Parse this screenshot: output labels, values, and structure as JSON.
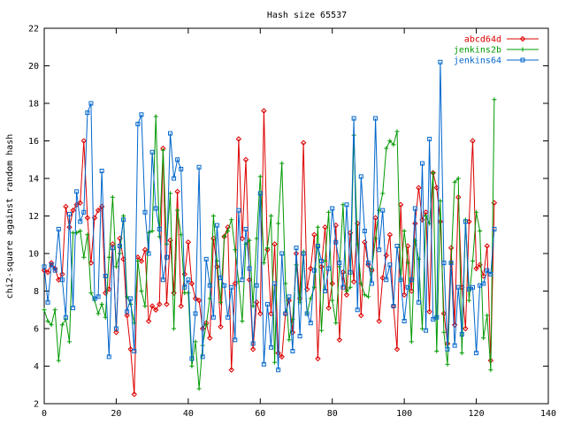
{
  "chart_data": {
    "type": "line",
    "title": "Hash size 65537",
    "xlabel": "",
    "ylabel": "chi2-square against random hash",
    "xlim": [
      0,
      140
    ],
    "ylim": [
      2,
      22
    ],
    "xticks": [
      0,
      20,
      40,
      60,
      80,
      100,
      120,
      140
    ],
    "yticks": [
      2,
      4,
      6,
      8,
      10,
      12,
      14,
      16,
      18,
      20,
      22
    ],
    "grid": false,
    "legend_position": "top-right",
    "series": [
      {
        "name": "abcd64d",
        "color": "#dd0000",
        "marker": "diamond",
        "x": [
          0,
          1,
          2,
          3,
          4,
          5,
          6,
          7,
          8,
          9,
          10,
          11,
          12,
          13,
          14,
          15,
          16,
          17,
          18,
          19,
          20,
          21,
          22,
          23,
          24,
          25,
          26,
          27,
          28,
          29,
          30,
          31,
          32,
          33,
          34,
          35,
          36,
          37,
          38,
          39,
          40,
          41,
          42,
          43,
          44,
          45,
          46,
          47,
          48,
          49,
          50,
          51,
          52,
          53,
          54,
          55,
          56,
          57,
          58,
          59,
          60,
          61,
          62,
          63,
          64,
          65,
          66,
          67,
          68,
          69,
          70,
          71,
          72,
          73,
          74,
          75,
          76,
          77,
          78,
          79,
          80,
          81,
          82,
          83,
          84,
          85,
          86,
          87,
          88,
          89,
          90,
          91,
          92,
          93,
          94,
          95,
          96,
          97,
          98,
          99,
          100,
          101,
          102,
          103,
          104,
          105,
          106,
          107,
          108,
          109,
          110,
          111,
          112,
          113,
          114,
          115,
          116,
          117,
          118,
          119,
          120,
          121,
          122,
          123,
          124,
          125
        ],
        "y": [
          9.1,
          9.0,
          9.5,
          9.2,
          8.6,
          8.9,
          12.5,
          11.4,
          12.3,
          12.6,
          12.7,
          16.0,
          11.9,
          9.5,
          11.9,
          12.3,
          12.5,
          7.9,
          8.1,
          10.5,
          5.8,
          10.8,
          9.7,
          6.7,
          4.9,
          2.5,
          9.8,
          9.6,
          10.2,
          6.4,
          7.2,
          7.0,
          7.3,
          15.6,
          7.3,
          10.7,
          7.9,
          13.3,
          7.2,
          8.9,
          10.6,
          8.4,
          7.6,
          7.5,
          6.0,
          6.3,
          5.5,
          10.8,
          9.3,
          6.1,
          10.9,
          11.4,
          3.8,
          8.4,
          16.1,
          10.8,
          15.0,
          8.6,
          4.9,
          7.4,
          6.8,
          17.6,
          10.2,
          6.8,
          10.5,
          4.7,
          4.5,
          6.8,
          7.5,
          5.8,
          10.0,
          7.6,
          15.9,
          8.1,
          9.2,
          11.0,
          4.4,
          9.3,
          11.4,
          7.1,
          8.4,
          11.5,
          5.4,
          9.0,
          7.8,
          11.1,
          8.5,
          11.6,
          6.7,
          10.6,
          9.4,
          9.1,
          11.9,
          6.4,
          8.7,
          9.9,
          11.0,
          7.2,
          4.9,
          12.6,
          7.8,
          10.4,
          8.0,
          11.6,
          13.5,
          11.8,
          12.2,
          6.9,
          14.3,
          13.5,
          11.7,
          6.8,
          5.2,
          10.3,
          6.2,
          13.0,
          8.2,
          6.0,
          11.7,
          16.0,
          9.2,
          9.4,
          8.8,
          10.4,
          4.3,
          12.7
        ]
      },
      {
        "name": "jenkins2b",
        "color": "#009900",
        "marker": "plus",
        "x": [
          0,
          1,
          2,
          3,
          4,
          5,
          6,
          7,
          8,
          9,
          10,
          11,
          12,
          13,
          14,
          15,
          16,
          17,
          18,
          19,
          20,
          21,
          22,
          23,
          24,
          25,
          26,
          27,
          28,
          29,
          30,
          31,
          32,
          33,
          34,
          35,
          36,
          37,
          38,
          39,
          40,
          41,
          42,
          43,
          44,
          45,
          46,
          47,
          48,
          49,
          50,
          51,
          52,
          53,
          54,
          55,
          56,
          57,
          58,
          59,
          60,
          61,
          62,
          63,
          64,
          65,
          66,
          67,
          68,
          69,
          70,
          71,
          72,
          73,
          74,
          75,
          76,
          77,
          78,
          79,
          80,
          81,
          82,
          83,
          84,
          85,
          86,
          87,
          88,
          89,
          90,
          91,
          92,
          93,
          94,
          95,
          96,
          97,
          98,
          99,
          100,
          101,
          102,
          103,
          104,
          105,
          106,
          107,
          108,
          109,
          110,
          111,
          112,
          113,
          114,
          115,
          116,
          117,
          118,
          119,
          120,
          121,
          122,
          123,
          124,
          125
        ],
        "y": [
          7.0,
          6.4,
          6.2,
          7.0,
          4.3,
          6.2,
          6.5,
          5.3,
          11.1,
          11.1,
          11.2,
          9.8,
          11.0,
          7.9,
          7.5,
          6.8,
          7.3,
          6.6,
          9.8,
          13.0,
          9.3,
          10.0,
          12.0,
          7.7,
          7.3,
          6.3,
          9.6,
          8.0,
          7.2,
          11.1,
          11.2,
          17.3,
          10.9,
          15.5,
          10.5,
          13.2,
          6.0,
          12.3,
          11.0,
          7.9,
          7.9,
          4.0,
          5.3,
          2.8,
          5.1,
          6.2,
          7.6,
          12.0,
          9.6,
          7.4,
          10.9,
          11.2,
          11.8,
          10.2,
          8.5,
          6.4,
          10.5,
          10.7,
          7.2,
          10.8,
          14.1,
          9.5,
          10.3,
          12.0,
          4.2,
          11.6,
          14.8,
          8.4,
          5.4,
          6.5,
          9.4,
          7.4,
          10.1,
          6.8,
          7.6,
          8.2,
          11.4,
          5.9,
          9.6,
          12.2,
          7.5,
          6.3,
          9.3,
          12.6,
          8.0,
          8.2,
          16.3,
          10.5,
          8.4,
          7.8,
          7.7,
          9.2,
          10.8,
          12.3,
          13.2,
          15.6,
          16.0,
          15.8,
          16.5,
          8.6,
          11.2,
          9.5,
          5.3,
          10.7,
          9.7,
          6.0,
          12.0,
          11.6,
          14.3,
          4.8,
          12.8,
          5.8,
          4.1,
          9.5,
          13.8,
          14.0,
          4.7,
          11.8,
          7.5,
          9.6,
          12.2,
          11.2,
          5.5,
          6.7,
          3.8,
          18.2
        ]
      },
      {
        "name": "jenkins64",
        "color": "#0066cc",
        "marker": "square",
        "x": [
          0,
          1,
          2,
          3,
          4,
          5,
          6,
          7,
          8,
          9,
          10,
          11,
          12,
          13,
          14,
          15,
          16,
          17,
          18,
          19,
          20,
          21,
          22,
          23,
          24,
          25,
          26,
          27,
          28,
          29,
          30,
          31,
          32,
          33,
          34,
          35,
          36,
          37,
          38,
          39,
          40,
          41,
          42,
          43,
          44,
          45,
          46,
          47,
          48,
          49,
          50,
          51,
          52,
          53,
          54,
          55,
          56,
          57,
          58,
          59,
          60,
          61,
          62,
          63,
          64,
          65,
          66,
          67,
          68,
          69,
          70,
          71,
          72,
          73,
          74,
          75,
          76,
          77,
          78,
          79,
          80,
          81,
          82,
          83,
          84,
          85,
          86,
          87,
          88,
          89,
          90,
          91,
          92,
          93,
          94,
          95,
          96,
          97,
          98,
          99,
          100,
          101,
          102,
          103,
          104,
          105,
          106,
          107,
          108,
          109,
          110,
          111,
          112,
          113,
          114,
          115,
          116,
          117,
          118,
          119,
          120,
          121,
          122,
          123,
          124,
          125
        ],
        "y": [
          9.3,
          7.4,
          9.4,
          9.1,
          11.3,
          8.6,
          6.6,
          12.1,
          7.1,
          13.3,
          11.7,
          12.2,
          17.5,
          18.0,
          7.6,
          7.7,
          14.4,
          8.8,
          4.5,
          10.3,
          6.0,
          10.4,
          11.8,
          6.9,
          7.6,
          4.8,
          16.9,
          17.4,
          12.2,
          10.0,
          15.4,
          12.4,
          11.3,
          8.6,
          9.8,
          16.4,
          14.0,
          15.0,
          14.5,
          8.2,
          8.6,
          4.4,
          6.8,
          14.6,
          4.5,
          9.7,
          8.3,
          6.6,
          11.5,
          8.7,
          8.3,
          6.6,
          8.2,
          5.4,
          12.3,
          8.6,
          11.3,
          9.2,
          5.2,
          8.3,
          13.2,
          4.1,
          7.3,
          5.0,
          8.4,
          3.8,
          10.0,
          6.8,
          7.7,
          4.8,
          10.3,
          5.6,
          10.0,
          6.8,
          6.3,
          9.1,
          10.4,
          9.6,
          8.0,
          9.2,
          12.4,
          10.6,
          9.5,
          8.2,
          12.6,
          9.0,
          17.2,
          7.0,
          14.1,
          11.2,
          9.5,
          8.4,
          17.2,
          10.2,
          12.3,
          8.6,
          9.4,
          7.2,
          10.4,
          8.6,
          6.4,
          8.2,
          8.6,
          12.4,
          7.4,
          14.8,
          5.9,
          16.1,
          6.5,
          6.6,
          20.2,
          9.5,
          4.9,
          9.5,
          5.1,
          8.2,
          5.7,
          11.7,
          8.1,
          8.2,
          4.7,
          8.3,
          8.4,
          9.1,
          8.9,
          11.3
        ]
      }
    ]
  }
}
